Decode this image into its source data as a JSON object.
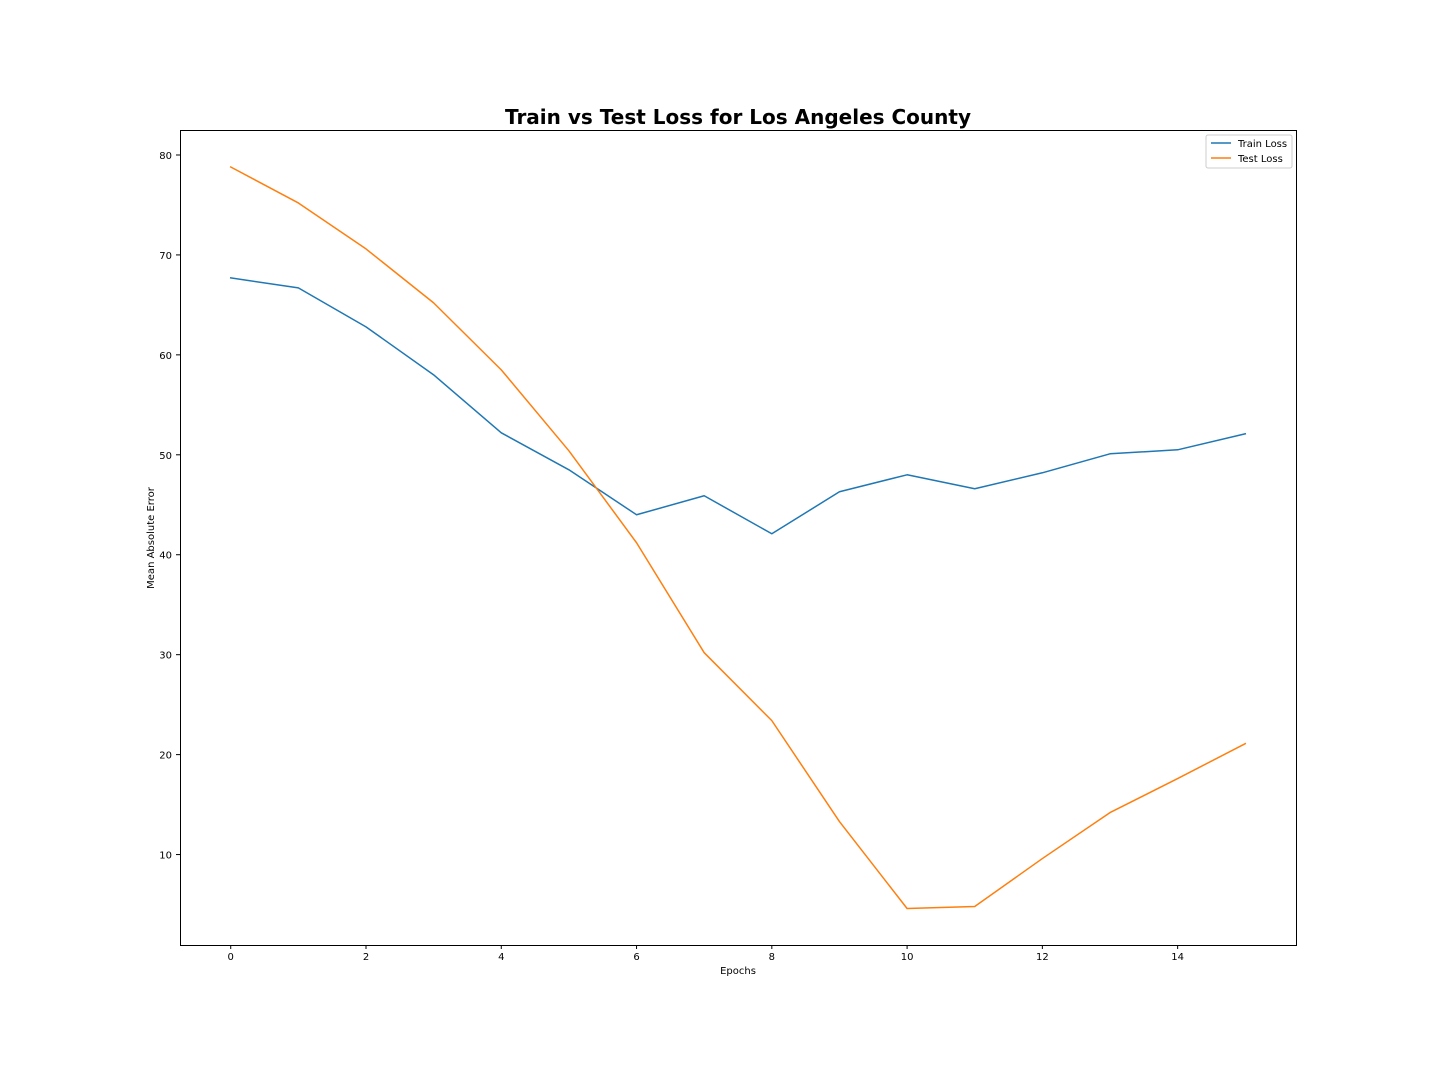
{
  "chart_data": {
    "type": "line",
    "title": "Train vs Test Loss for Los Angeles County",
    "xlabel": "Epochs",
    "ylabel": "Mean Absolute Error",
    "x": [
      0,
      1,
      2,
      3,
      4,
      5,
      6,
      7,
      8,
      9,
      10,
      11,
      12,
      13,
      14,
      15
    ],
    "xlim": [
      -0.75,
      15.75
    ],
    "ylim": [
      0.95,
      82.5
    ],
    "xticks": [
      0,
      2,
      4,
      6,
      8,
      10,
      12,
      14
    ],
    "yticks": [
      10,
      20,
      30,
      40,
      50,
      60,
      70,
      80
    ],
    "xtick_labels": [
      "0",
      "2",
      "4",
      "6",
      "8",
      "10",
      "12",
      "14"
    ],
    "ytick_labels": [
      "10",
      "20",
      "30",
      "40",
      "50",
      "60",
      "70",
      "80"
    ],
    "grid": false,
    "legend_position": "top-right",
    "series": [
      {
        "name": "Train Loss",
        "color": "#1f77b4",
        "values": [
          67.7,
          66.7,
          62.8,
          58.0,
          52.2,
          48.5,
          44.0,
          45.9,
          42.1,
          46.3,
          48.0,
          46.6,
          48.2,
          50.1,
          50.5,
          52.1
        ]
      },
      {
        "name": "Test Loss",
        "color": "#ff7f0e",
        "values": [
          78.8,
          75.2,
          70.6,
          65.2,
          58.5,
          50.4,
          41.2,
          30.2,
          23.4,
          13.3,
          4.6,
          4.8,
          9.6,
          14.2,
          17.6,
          21.1
        ]
      }
    ]
  }
}
